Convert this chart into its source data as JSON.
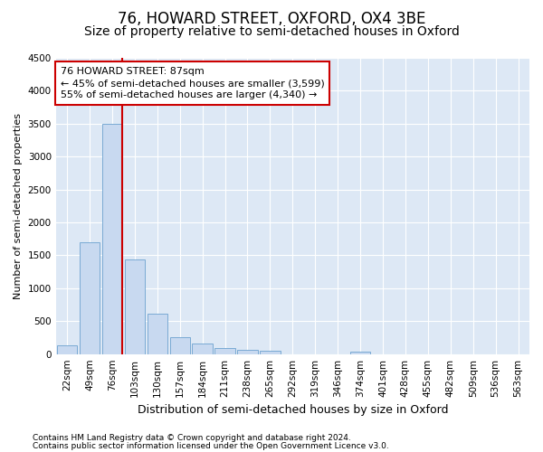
{
  "title": "76, HOWARD STREET, OXFORD, OX4 3BE",
  "subtitle": "Size of property relative to semi-detached houses in Oxford",
  "xlabel": "Distribution of semi-detached houses by size in Oxford",
  "ylabel": "Number of semi-detached properties",
  "footnote1": "Contains HM Land Registry data © Crown copyright and database right 2024.",
  "footnote2": "Contains public sector information licensed under the Open Government Licence v3.0.",
  "categories": [
    "22sqm",
    "49sqm",
    "76sqm",
    "103sqm",
    "130sqm",
    "157sqm",
    "184sqm",
    "211sqm",
    "238sqm",
    "265sqm",
    "292sqm",
    "319sqm",
    "346sqm",
    "374sqm",
    "401sqm",
    "428sqm",
    "455sqm",
    "482sqm",
    "509sqm",
    "536sqm",
    "563sqm"
  ],
  "values": [
    130,
    1700,
    3500,
    1440,
    620,
    260,
    155,
    85,
    65,
    50,
    0,
    0,
    0,
    40,
    0,
    0,
    0,
    0,
    0,
    0,
    0
  ],
  "bar_color": "#c8d9f0",
  "bar_edge_color": "#7aaad4",
  "property_line_x": 2.43,
  "property_line_color": "#cc0000",
  "annotation_line1": "76 HOWARD STREET: 87sqm",
  "annotation_line2": "← 45% of semi-detached houses are smaller (3,599)",
  "annotation_line3": "55% of semi-detached houses are larger (4,340) →",
  "annotation_box_color": "#cc0000",
  "ylim": [
    0,
    4500
  ],
  "yticks": [
    0,
    500,
    1000,
    1500,
    2000,
    2500,
    3000,
    3500,
    4000,
    4500
  ],
  "plot_bg_color": "#dde8f5",
  "fig_bg_color": "#ffffff",
  "grid_color": "#ffffff",
  "title_fontsize": 12,
  "subtitle_fontsize": 10,
  "ylabel_fontsize": 8,
  "xlabel_fontsize": 9,
  "tick_fontsize": 7.5,
  "footnote_fontsize": 6.5
}
